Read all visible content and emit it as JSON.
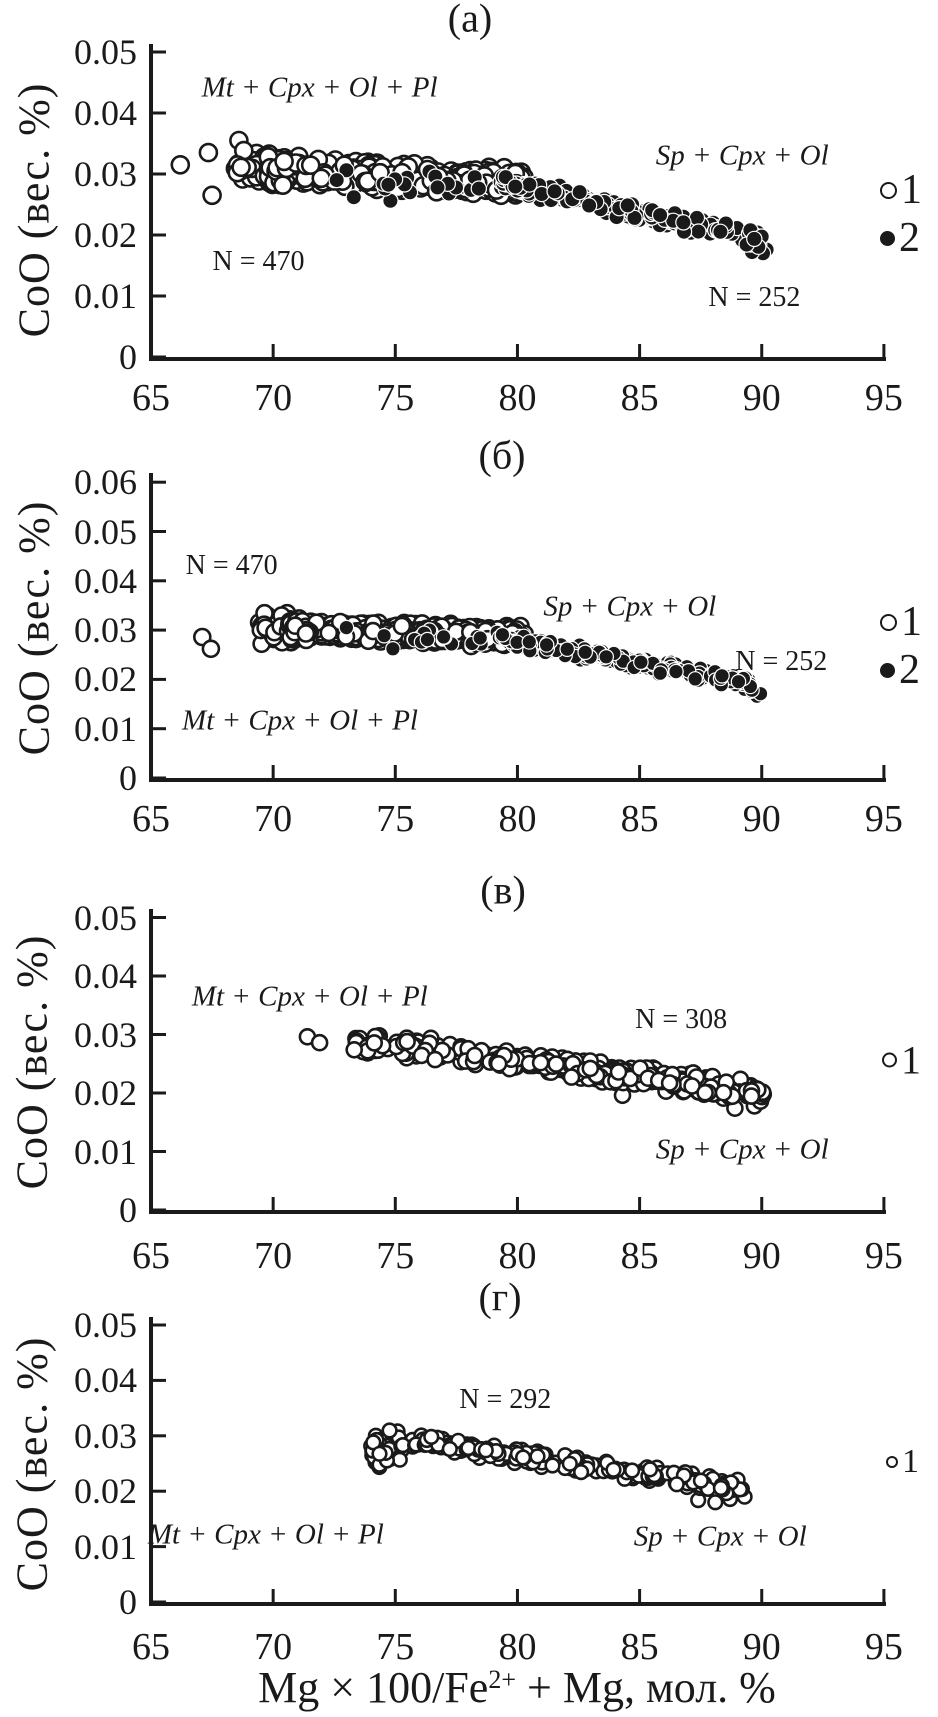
{
  "figure": {
    "yaxis_title": "CoO (вес. %)",
    "xaxis_title": {
      "prefix": "Mg × 100/Fe",
      "sup": "2+",
      "suffix": " + Mg, мол. %"
    },
    "ink_color": "#1a1a1a",
    "paper_color": "#ffffff"
  },
  "chart_data": [
    {
      "type": "scatter",
      "panel_id": "a",
      "title": "(а)",
      "ylabel": "CoO (вес. %)",
      "xlim": [
        65,
        95
      ],
      "ylim": [
        0,
        0.05
      ],
      "xticks": {
        "values": [
          65,
          70,
          75,
          80,
          85,
          90,
          95
        ],
        "labels": [
          "65",
          "70",
          "75",
          "80",
          "85",
          "90",
          "95"
        ]
      },
      "yticks": {
        "values": [
          0,
          0.01,
          0.02,
          0.03,
          0.04,
          0.05
        ],
        "labels": [
          "0",
          "0.01",
          "0.02",
          "0.03",
          "0.04",
          "0.05"
        ]
      },
      "legend": [
        {
          "marker": "open",
          "label": "1"
        },
        {
          "marker": "filled",
          "label": "2"
        }
      ],
      "annotations": [
        {
          "name": "mt-assemblage-label",
          "text": "Mt + Cpx + Ol + Pl",
          "x": 71.9,
          "y": 0.0441,
          "italic": true
        },
        {
          "name": "sp-assemblage-label",
          "text": "Sp + Cpx + Ol",
          "x": 89.2,
          "y": 0.033,
          "italic": true
        },
        {
          "name": "n-open-label",
          "text": "N = 470",
          "x": 69.4,
          "y": 0.0156,
          "italic": false
        },
        {
          "name": "n-filled-label",
          "text": "N = 252",
          "x": 89.7,
          "y": 0.0097,
          "italic": false
        }
      ],
      "series": [
        {
          "name": "series-1-open",
          "marker": "open",
          "count": 470,
          "r": 8.5,
          "seed": 11,
          "points": [
            [
              66.2,
              0.0315
            ],
            [
              67.35,
              0.0335
            ],
            [
              67.5,
              0.0265
            ],
            [
              68.6,
              0.0355
            ]
          ],
          "bands": [
            {
              "x0": 68.4,
              "x1": 70.6,
              "yStart": 0.0312,
              "yEnd": 0.0308,
              "spread": 0.0036,
              "n": 60
            },
            {
              "x0": 69.8,
              "x1": 80.3,
              "yStart": 0.0308,
              "yEnd": 0.0284,
              "spread": 0.0027,
              "n": 406
            }
          ]
        },
        {
          "name": "series-2-filled",
          "marker": "filled",
          "count": 252,
          "r": 7.6,
          "seed": 22,
          "points": [
            [
              90.2,
              0.0176
            ],
            [
              89.9,
              0.0184
            ],
            [
              90.05,
              0.017
            ],
            [
              89.6,
              0.0172
            ],
            [
              73.0,
              0.0306
            ],
            [
              76.4,
              0.0304
            ],
            [
              73.3,
              0.0262
            ],
            [
              74.8,
              0.0256
            ],
            [
              75.6,
              0.027
            ],
            [
              77.2,
              0.0268
            ],
            [
              78.1,
              0.0274
            ],
            [
              72.6,
              0.029
            ]
          ],
          "bands": [
            {
              "x0": 74.5,
              "x1": 79.3,
              "yStart": 0.029,
              "yEnd": 0.0286,
              "spread": 0.0018,
              "n": 12
            },
            {
              "x0": 79.3,
              "x1": 90.0,
              "yStart": 0.0286,
              "yEnd": 0.0192,
              "spread": 0.0017,
              "n": 228
            }
          ]
        }
      ]
    },
    {
      "type": "scatter",
      "panel_id": "b",
      "title": "(б)",
      "ylabel": "CoO (вес. %)",
      "xlim": [
        65,
        95
      ],
      "ylim": [
        0,
        0.06
      ],
      "xticks": {
        "values": [
          65,
          70,
          75,
          80,
          85,
          90,
          95
        ],
        "labels": [
          "65",
          "70",
          "75",
          "80",
          "85",
          "90",
          "95"
        ]
      },
      "yticks": {
        "values": [
          0,
          0.01,
          0.02,
          0.03,
          0.04,
          0.05,
          0.06
        ],
        "labels": [
          "0",
          "0.01",
          "0.02",
          "0.03",
          "0.04",
          "0.05",
          "0.06"
        ]
      },
      "legend": [
        {
          "marker": "open",
          "label": "1"
        },
        {
          "marker": "filled",
          "label": "2"
        }
      ],
      "annotations": [
        {
          "name": "n-open-label",
          "text": "N = 470",
          "x": 68.3,
          "y": 0.043,
          "italic": false
        },
        {
          "name": "sp-assemblage-label",
          "text": "Sp + Cpx + Ol",
          "x": 84.6,
          "y": 0.0347,
          "italic": true
        },
        {
          "name": "n-filled-label",
          "text": "N = 252",
          "x": 90.8,
          "y": 0.0235,
          "italic": false
        },
        {
          "name": "mt-assemblage-label",
          "text": "Mt + Cpx + Ol + Pl",
          "x": 71.1,
          "y": 0.0116,
          "italic": true
        }
      ],
      "series": [
        {
          "name": "series-1-open",
          "marker": "open",
          "count": 470,
          "r": 8,
          "seed": 33,
          "points": [
            [
              67.1,
              0.0286
            ],
            [
              67.45,
              0.0262
            ]
          ],
          "bands": [
            {
              "x0": 69.4,
              "x1": 71.0,
              "yStart": 0.0306,
              "yEnd": 0.0302,
              "spread": 0.0036,
              "n": 56
            },
            {
              "x0": 70.6,
              "x1": 80.3,
              "yStart": 0.0302,
              "yEnd": 0.0286,
              "spread": 0.0023,
              "n": 412
            }
          ]
        },
        {
          "name": "series-2-filled",
          "marker": "filled",
          "count": 252,
          "r": 7.2,
          "seed": 44,
          "points": [
            [
              89.8,
              0.0166
            ],
            [
              89.55,
              0.0176
            ],
            [
              89.95,
              0.0171
            ],
            [
              89.3,
              0.018
            ],
            [
              73.0,
              0.0305
            ],
            [
              76.4,
              0.03
            ],
            [
              74.9,
              0.0262
            ],
            [
              77.3,
              0.0272
            ]
          ],
          "bands": [
            {
              "x0": 74.5,
              "x1": 79.3,
              "yStart": 0.0288,
              "yEnd": 0.0284,
              "spread": 0.0017,
              "n": 14
            },
            {
              "x0": 79.3,
              "x1": 89.7,
              "yStart": 0.0284,
              "yEnd": 0.019,
              "spread": 0.0016,
              "n": 230
            }
          ]
        }
      ]
    },
    {
      "type": "scatter",
      "panel_id": "v",
      "title": "(в)",
      "ylabel": "CoO (вес. %)",
      "xlim": [
        65,
        95
      ],
      "ylim": [
        0,
        0.05
      ],
      "xticks": {
        "values": [
          65,
          70,
          75,
          80,
          85,
          90,
          95
        ],
        "labels": [
          "65",
          "70",
          "75",
          "80",
          "85",
          "90",
          "95"
        ]
      },
      "yticks": {
        "values": [
          0,
          0.01,
          0.02,
          0.03,
          0.04,
          0.05
        ],
        "labels": [
          "0",
          "0.01",
          "0.02",
          "0.03",
          "0.04",
          "0.05"
        ]
      },
      "legend": [
        {
          "marker": "open",
          "label": "1"
        }
      ],
      "annotations": [
        {
          "name": "mt-assemblage-label",
          "text": "Mt + Cpx + Ol + Pl",
          "x": 71.5,
          "y": 0.0364,
          "italic": true
        },
        {
          "name": "n-open-label",
          "text": "N = 308",
          "x": 86.7,
          "y": 0.0325,
          "italic": false
        },
        {
          "name": "sp-assemblage-label",
          "text": "Sp + Cpx + Ol",
          "x": 89.2,
          "y": 0.0103,
          "italic": true
        }
      ],
      "series": [
        {
          "name": "series-1-open",
          "marker": "open",
          "count": 308,
          "r": 7.5,
          "seed": 55,
          "points": [
            [
              71.4,
              0.0296
            ],
            [
              71.9,
              0.0286
            ],
            [
              89.7,
              0.0178
            ],
            [
              89.95,
              0.0186
            ],
            [
              88.9,
              0.0174
            ],
            [
              84.3,
              0.0196
            ]
          ],
          "bands": [
            {
              "x0": 73.2,
              "x1": 79.2,
              "yStart": 0.0288,
              "yEnd": 0.0262,
              "spread": 0.0021,
              "n": 70
            },
            {
              "x0": 79.0,
              "x1": 90.1,
              "yStart": 0.026,
              "yEnd": 0.02,
              "spread": 0.002,
              "n": 232
            }
          ]
        }
      ]
    },
    {
      "type": "scatter",
      "panel_id": "g",
      "title": "(г)",
      "ylabel": "CoO (вес. %)",
      "xlim": [
        65,
        95
      ],
      "ylim": [
        0,
        0.05
      ],
      "xticks": {
        "values": [
          65,
          70,
          75,
          80,
          85,
          90,
          95
        ],
        "labels": [
          "65",
          "70",
          "75",
          "80",
          "85",
          "90",
          "95"
        ]
      },
      "yticks": {
        "values": [
          0,
          0.01,
          0.02,
          0.03,
          0.04,
          0.05
        ],
        "labels": [
          "0",
          "0.01",
          "0.02",
          "0.03",
          "0.04",
          "0.05"
        ]
      },
      "legend": [
        {
          "marker": "open",
          "label": "1"
        }
      ],
      "annotations": [
        {
          "name": "n-open-label",
          "text": "N = 292",
          "x": 79.5,
          "y": 0.0365,
          "italic": false
        },
        {
          "name": "mt-assemblage-label",
          "text": "Mt + Cpx + Ol + Pl",
          "x": 69.7,
          "y": 0.0121,
          "italic": true
        },
        {
          "name": "sp-assemblage-label",
          "text": "Sp + Cpx + Ol",
          "x": 88.3,
          "y": 0.0117,
          "italic": true
        }
      ],
      "series": [
        {
          "name": "series-1-open",
          "marker": "open",
          "count": 292,
          "r": 6.8,
          "seed": 66,
          "points": [
            [
              88.1,
              0.018
            ],
            [
              89.3,
              0.019
            ],
            [
              87.4,
              0.0184
            ],
            [
              88.7,
              0.0186
            ]
          ],
          "bands": [
            {
              "x0": 74.0,
              "x1": 75.3,
              "yStart": 0.0282,
              "yEnd": 0.0278,
              "spread": 0.0038,
              "n": 46
            },
            {
              "x0": 75.3,
              "x1": 89.2,
              "yStart": 0.0293,
              "yEnd": 0.0206,
              "spread": 0.0016,
              "n": 242
            }
          ]
        }
      ]
    }
  ]
}
